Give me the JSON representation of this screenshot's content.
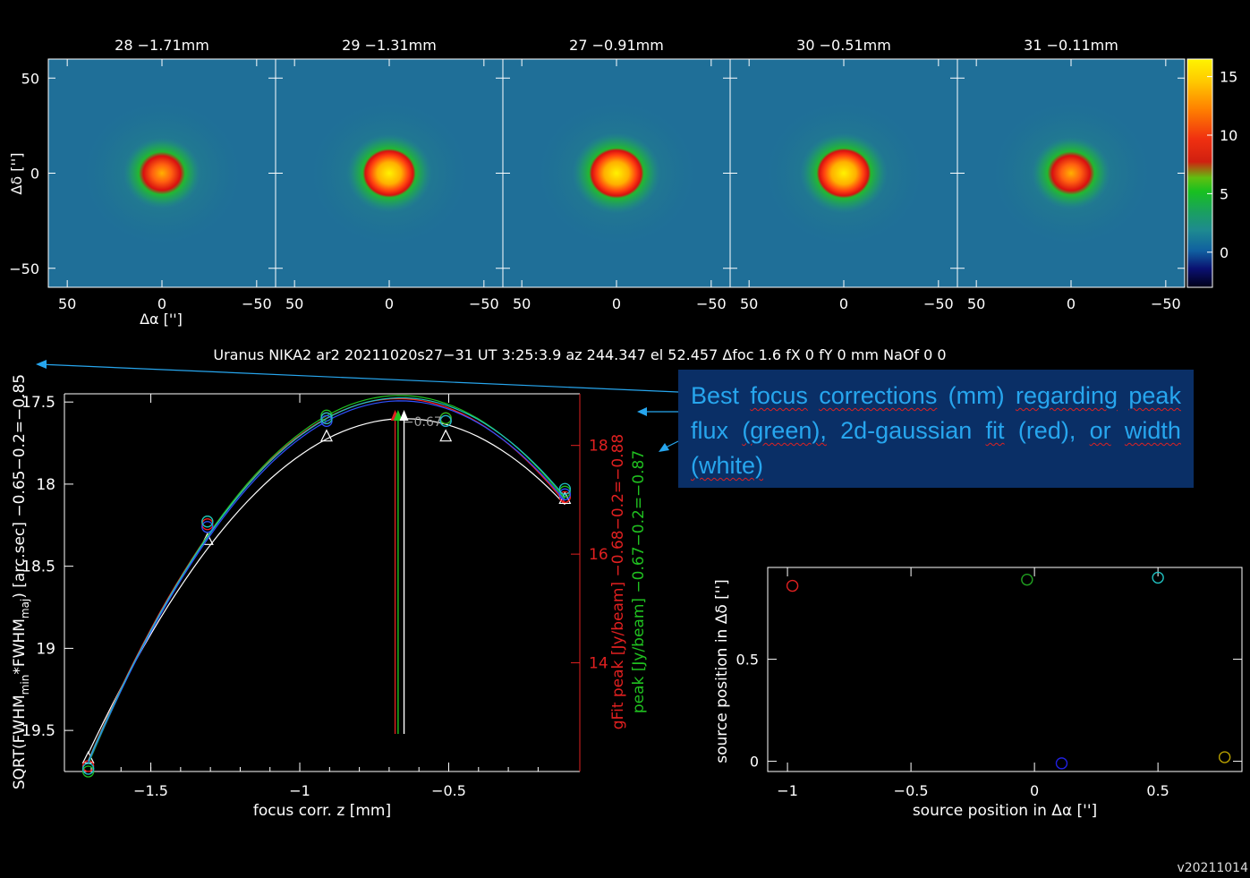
{
  "chart_data": [
    {
      "type": "heatmap",
      "panels": [
        {
          "title": "28 −1.71mm",
          "peak": 11.5
        },
        {
          "title": "29 −1.31mm",
          "peak": 14.5
        },
        {
          "title": "27 −0.91mm",
          "peak": 15.5
        },
        {
          "title": "30 −0.51mm",
          "peak": 15.3
        },
        {
          "title": "31 −0.11mm",
          "peak": 12.0
        }
      ],
      "xlabel": "Δα ['']",
      "ylabel": "Δδ ['']",
      "xlim": [
        60,
        -60
      ],
      "ylim": [
        -60,
        60
      ],
      "x_ticks": [
        "50",
        "0",
        "−50"
      ],
      "y_ticks": [
        "50",
        "0",
        "−50"
      ],
      "colorbar_ticks": [
        "15",
        "10",
        "5",
        "0"
      ],
      "colorbar_range": [
        -3,
        16.5
      ]
    },
    {
      "type": "line",
      "title": "Uranus NIKA2 ar2 20211020s27−31 UT 3:25:3.9 az 244.347 el 52.457 Δfoc 1.6 fX 0 fY 0 mm NaOf 0 0",
      "xlabel": "focus corr. z [mm]",
      "ylabel_main": "SQRT(FWHM",
      "ylabel_sub1": "min",
      "ylabel_mid": "*FWHM",
      "ylabel_sub2": "maj",
      "ylabel_end": ") [arc.sec]  −0.65−0.2=−0.85",
      "right_label_red": "gFit peak [Jy/beam]  −0.68−0.2=−0.88",
      "right_label_green": "peak [Jy/beam]  −0.67−0.2=−0.87",
      "xlim": [
        -1.79,
        -0.06
      ],
      "ylim_left": [
        19.75,
        17.45
      ],
      "ylim_right": [
        12.0,
        18.95
      ],
      "x_ticks": [
        "−1.5",
        "−1",
        "−0.5"
      ],
      "y_ticks_left": [
        "17.5",
        "18",
        "18.5",
        "19",
        "19.5"
      ],
      "y_ticks_right": [
        "18",
        "16",
        "14"
      ],
      "x": [
        -1.71,
        -1.31,
        -0.91,
        -0.51,
        -0.11
      ],
      "series": [
        {
          "name": "width",
          "color": "#ffffff",
          "marker": "triangle",
          "values": [
            19.67,
            18.34,
            17.71,
            17.71,
            18.09
          ],
          "best": -0.65,
          "best_value": 17.64
        },
        {
          "name": "2d-gaussian fit",
          "color": "#ff2020",
          "marker": "circle",
          "values": [
            12.1,
            16.55,
            18.5,
            18.5,
            17.05
          ],
          "best": -0.68,
          "best_value": 18.7
        },
        {
          "name": "peak flux",
          "color": "#20c020",
          "marker": "circle",
          "values": [
            12.0,
            16.6,
            18.55,
            18.5,
            17.15
          ],
          "best": -0.67,
          "best_value": 18.65
        },
        {
          "name": "",
          "color": "#3050ff",
          "marker": "circle",
          "values": [
            12.05,
            16.5,
            18.45,
            18.45,
            17.1
          ]
        },
        {
          "name": "",
          "color": "#20c0c0",
          "marker": "circle",
          "values": [
            12.05,
            16.6,
            18.5,
            18.45,
            17.2
          ]
        }
      ],
      "best_values_label": "−0.67",
      "best_x_white": -0.65,
      "best_x_red": -0.68,
      "best_x_green": -0.67
    },
    {
      "type": "scatter",
      "xlabel": "source position in Δα ['']",
      "ylabel": "source position in Δδ ['']",
      "xlim": [
        -1.08,
        0.84
      ],
      "ylim": [
        -0.05,
        0.95
      ],
      "x_ticks": [
        "−1",
        "−0.5",
        "0",
        "0.5"
      ],
      "y_ticks": [
        "0",
        "0.5"
      ],
      "points": [
        {
          "x": -0.98,
          "y": 0.86,
          "color": "#e02020"
        },
        {
          "x": -0.03,
          "y": 0.89,
          "color": "#20a020"
        },
        {
          "x": 0.11,
          "y": -0.01,
          "color": "#2020e0"
        },
        {
          "x": 0.5,
          "y": 0.9,
          "color": "#20c0c0"
        },
        {
          "x": 0.77,
          "y": 0.02,
          "color": "#b8a000"
        }
      ]
    }
  ],
  "annotation": {
    "line1_words": [
      "Best",
      "focus",
      "corrections",
      "(mm)",
      "regarding"
    ],
    "line2_words": [
      "peak",
      "flux",
      "(green),",
      "2d-gaussian",
      "fit",
      "(red),"
    ],
    "line3_words": [
      "or",
      "width",
      "(white)"
    ]
  },
  "version": "v20211014"
}
